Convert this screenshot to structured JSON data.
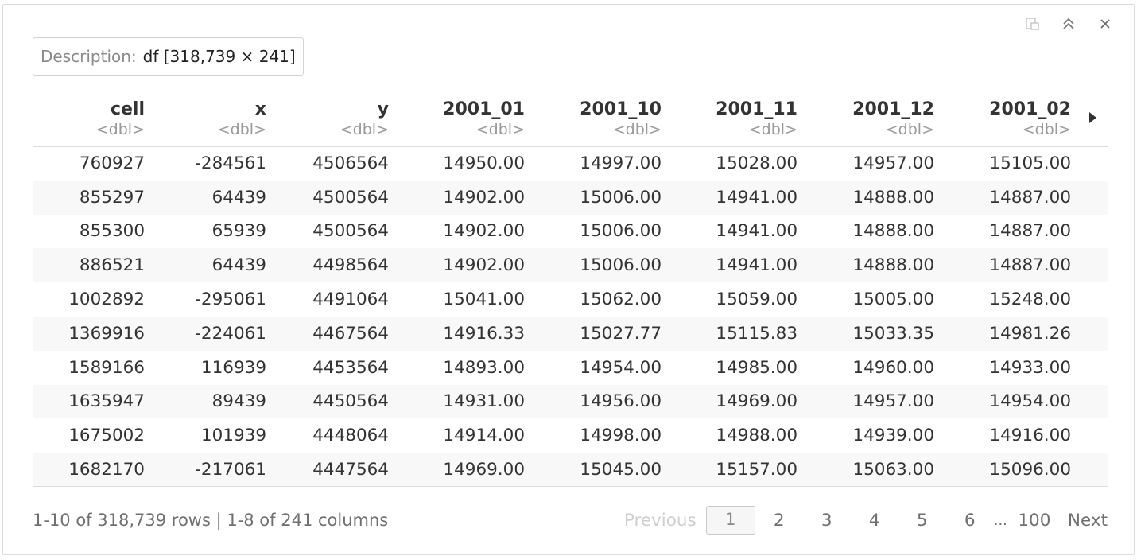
{
  "window_controls": {
    "icons": [
      "popout-icon",
      "collapse-icon",
      "close-icon"
    ]
  },
  "description": {
    "label": "Description:",
    "value": "df [318,739 × 241]"
  },
  "columns": [
    {
      "name": "cell",
      "type": "<dbl>"
    },
    {
      "name": "x",
      "type": "<dbl>"
    },
    {
      "name": "y",
      "type": "<dbl>"
    },
    {
      "name": "2001_01",
      "type": "<dbl>"
    },
    {
      "name": "2001_10",
      "type": "<dbl>"
    },
    {
      "name": "2001_11",
      "type": "<dbl>"
    },
    {
      "name": "2001_12",
      "type": "<dbl>"
    },
    {
      "name": "2001_02",
      "type": "<dbl>"
    }
  ],
  "rows": [
    [
      "760927",
      "-284561",
      "4506564",
      "14950.00",
      "14997.00",
      "15028.00",
      "14957.00",
      "15105.00"
    ],
    [
      "855297",
      "64439",
      "4500564",
      "14902.00",
      "15006.00",
      "14941.00",
      "14888.00",
      "14887.00"
    ],
    [
      "855300",
      "65939",
      "4500564",
      "14902.00",
      "15006.00",
      "14941.00",
      "14888.00",
      "14887.00"
    ],
    [
      "886521",
      "64439",
      "4498564",
      "14902.00",
      "15006.00",
      "14941.00",
      "14888.00",
      "14887.00"
    ],
    [
      "1002892",
      "-295061",
      "4491064",
      "15041.00",
      "15062.00",
      "15059.00",
      "15005.00",
      "15248.00"
    ],
    [
      "1369916",
      "-224061",
      "4467564",
      "14916.33",
      "15027.77",
      "15115.83",
      "15033.35",
      "14981.26"
    ],
    [
      "1589166",
      "116939",
      "4453564",
      "14893.00",
      "14954.00",
      "14985.00",
      "14960.00",
      "14933.00"
    ],
    [
      "1635947",
      "89439",
      "4450564",
      "14931.00",
      "14956.00",
      "14969.00",
      "14957.00",
      "14954.00"
    ],
    [
      "1675002",
      "101939",
      "4448064",
      "14914.00",
      "14998.00",
      "14988.00",
      "14939.00",
      "14916.00"
    ],
    [
      "1682170",
      "-217061",
      "4447564",
      "14969.00",
      "15045.00",
      "15157.00",
      "15063.00",
      "15096.00"
    ]
  ],
  "footer": {
    "summary": "1-10 of 318,739 rows | 1-8 of 241 columns",
    "previous_label": "Previous",
    "pages": [
      "1",
      "2",
      "3",
      "4",
      "5",
      "6"
    ],
    "ellipsis": "...",
    "last_page": "100",
    "next_label": "Next",
    "current_page": "1"
  },
  "colors": {
    "border": "#dcdcdc",
    "text": "#333333",
    "muted": "#9a9a9a",
    "stripe": "#f8f8f8"
  }
}
